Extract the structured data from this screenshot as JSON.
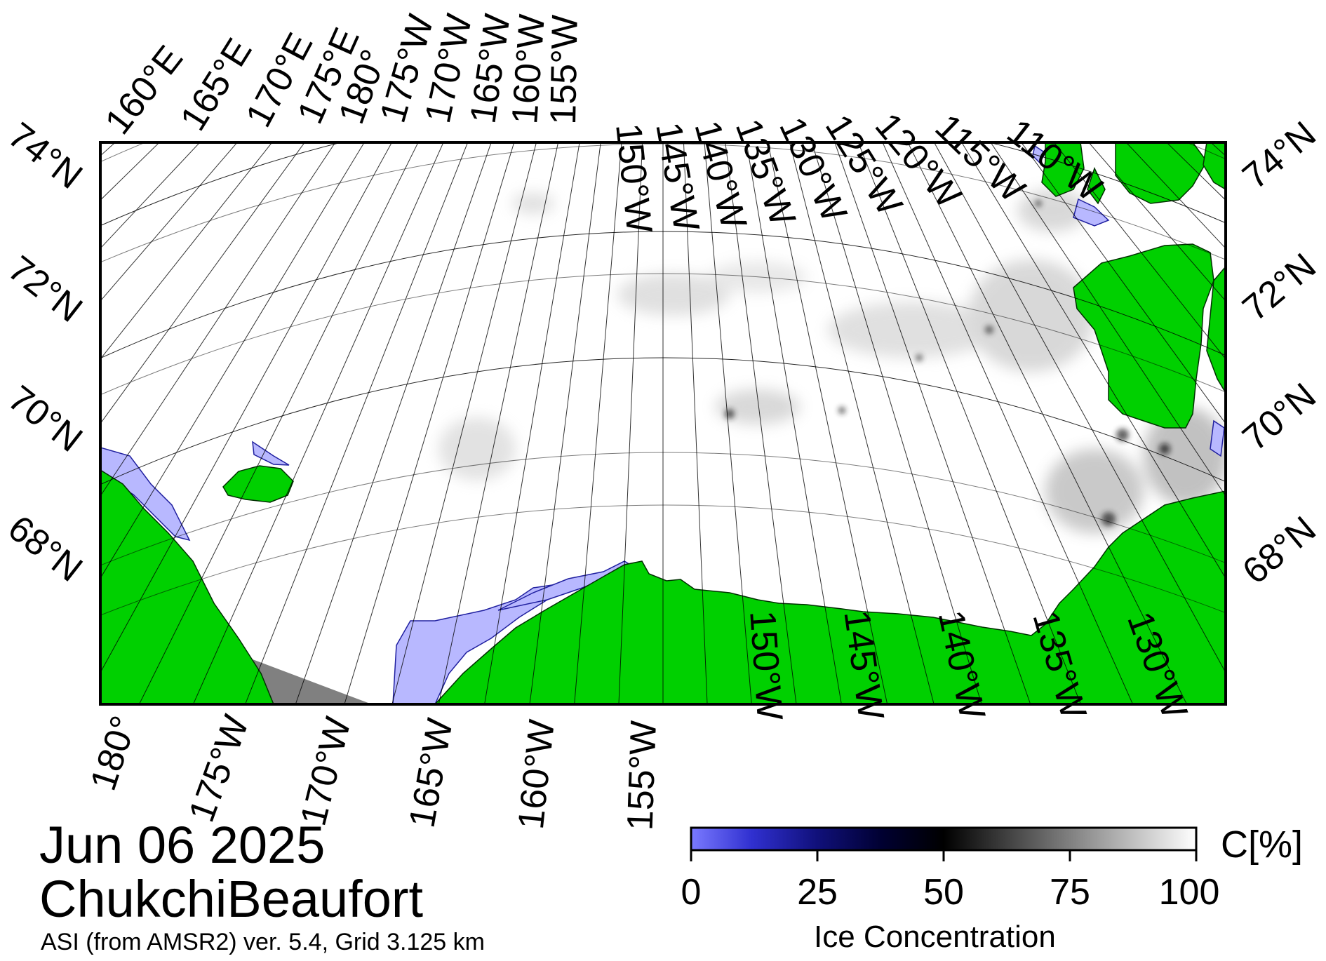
{
  "map": {
    "date": "Jun 06 2025",
    "region": "ChukchiBeaufort",
    "source": "ASI (from AMSR2) ver. 5.4,  Grid 3.125 km",
    "colors": {
      "land": "#00d000",
      "open_water": "#ffffff",
      "low_ice": "#b8b8ff",
      "missing": "#808080",
      "frame": "#000000"
    },
    "top_lon_labels": [
      "160°E",
      "165°E",
      "170°E",
      "175°E",
      "180°",
      "175°W",
      "170°W",
      "165°W",
      "160°W",
      "155°W",
      "150°W",
      "145°W",
      "140°W",
      "135°W",
      "130°W",
      "125°W",
      "120°W",
      "115°W",
      "110°W"
    ],
    "bottom_lon_labels": [
      "180°",
      "175°W",
      "170°W",
      "165°W",
      "160°W",
      "155°W",
      "150°W",
      "145°W",
      "140°W",
      "135°W",
      "130°W"
    ],
    "left_lat_labels": [
      "74°N",
      "72°N",
      "70°N",
      "68°N"
    ],
    "right_lat_labels": [
      "74°N",
      "72°N",
      "70°N",
      "68°N"
    ]
  },
  "colorbar": {
    "title": "Ice Concentration",
    "unit": "C[%]",
    "ticks": [
      "0",
      "25",
      "50",
      "75",
      "100"
    ],
    "range": [
      0,
      100
    ]
  }
}
